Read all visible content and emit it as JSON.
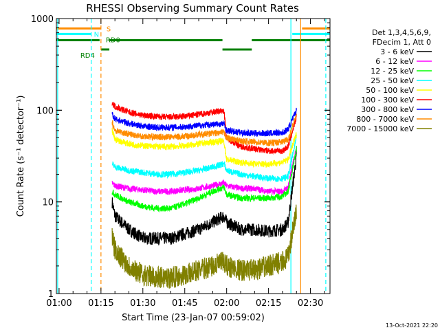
{
  "chart_data": {
    "type": "line",
    "title": "RHESSI Observing Summary Count Rates",
    "xlabel": "Start Time (23-Jan-07 00:59:02)",
    "ylabel": "Count Rate (s⁻¹ detector⁻¹)",
    "yscale": "log",
    "xlim": [
      "00:59:02",
      "02:37:00"
    ],
    "ylim": [
      1,
      1000
    ],
    "x_ticks": [
      "01:00",
      "01:15",
      "01:30",
      "01:45",
      "02:00",
      "02:15",
      "02:30"
    ],
    "y_ticks": [
      "1",
      "10",
      "100",
      "1000"
    ],
    "grid": false,
    "legend_placement": "right",
    "legend_header": [
      "Det 1,3,4,5,6,9,",
      "FDecim 1, Att 0"
    ],
    "series": [
      {
        "name": "3 - 6 keV",
        "color": "#000000",
        "x": [
          "01:19",
          "01:20",
          "01:25",
          "01:30",
          "01:35",
          "01:40",
          "01:45",
          "01:50",
          "01:55",
          "01:59",
          "02:00",
          "02:05",
          "02:10",
          "02:15",
          "02:20",
          "02:22",
          "02:25"
        ],
        "y": [
          10,
          7,
          5,
          4,
          4,
          4,
          4.5,
          5,
          6,
          7,
          6,
          5,
          5,
          4.8,
          5,
          6,
          32
        ]
      },
      {
        "name": "6 - 12 keV",
        "color": "#ff00ff",
        "x": [
          "01:19",
          "01:20",
          "01:25",
          "01:30",
          "01:35",
          "01:40",
          "01:45",
          "01:50",
          "01:55",
          "01:59",
          "02:00",
          "02:05",
          "02:10",
          "02:15",
          "02:20",
          "02:22",
          "02:25"
        ],
        "y": [
          16,
          15,
          14,
          13.5,
          13,
          13,
          13.5,
          14,
          15,
          16,
          15,
          14,
          14,
          13,
          13,
          14.5,
          40
        ]
      },
      {
        "name": "12 - 25 keV",
        "color": "#00ff00",
        "x": [
          "01:19",
          "01:20",
          "01:25",
          "01:30",
          "01:35",
          "01:40",
          "01:45",
          "01:50",
          "01:55",
          "01:59",
          "02:00",
          "02:05",
          "02:10",
          "02:15",
          "02:20",
          "02:22",
          "02:25"
        ],
        "y": [
          13,
          12,
          10,
          9,
          8.5,
          8.5,
          9.5,
          11,
          13,
          14.5,
          12,
          11,
          11,
          11,
          11.5,
          13,
          38
        ]
      },
      {
        "name": "25 - 50 keV",
        "color": "#00ffff",
        "x": [
          "01:19",
          "01:20",
          "01:25",
          "01:30",
          "01:35",
          "01:40",
          "01:45",
          "01:50",
          "01:55",
          "01:59",
          "02:00",
          "02:05",
          "02:10",
          "02:15",
          "02:20",
          "02:22",
          "02:25"
        ],
        "y": [
          26,
          24,
          22,
          21,
          20,
          20,
          21,
          22,
          24,
          26,
          22,
          20,
          19,
          18,
          18,
          19,
          50
        ]
      },
      {
        "name": "50 - 100 keV",
        "color": "#ffff00",
        "x": [
          "01:19",
          "01:20",
          "01:25",
          "01:30",
          "01:35",
          "01:40",
          "01:45",
          "01:50",
          "01:55",
          "01:59",
          "02:00",
          "02:05",
          "02:10",
          "02:15",
          "02:20",
          "02:22",
          "02:25"
        ],
        "y": [
          60,
          48,
          43,
          41,
          40,
          40,
          41,
          43,
          45,
          46,
          29,
          27,
          26,
          26,
          27,
          29,
          55
        ]
      },
      {
        "name": "100 - 300 keV",
        "color": "#ff0000",
        "x": [
          "01:19",
          "01:20",
          "01:25",
          "01:30",
          "01:35",
          "01:40",
          "01:45",
          "01:50",
          "01:55",
          "01:59",
          "02:00",
          "02:05",
          "02:10",
          "02:15",
          "02:20",
          "02:22",
          "02:25"
        ],
        "y": [
          120,
          110,
          95,
          88,
          85,
          84,
          86,
          90,
          95,
          100,
          50,
          40,
          38,
          36,
          36,
          40,
          85
        ]
      },
      {
        "name": "300 - 800 keV",
        "color": "#0000ff",
        "x": [
          "01:19",
          "01:20",
          "01:25",
          "01:30",
          "01:35",
          "01:40",
          "01:45",
          "01:50",
          "01:55",
          "01:59",
          "02:00",
          "02:05",
          "02:10",
          "02:15",
          "02:20",
          "02:22",
          "02:25"
        ],
        "y": [
          90,
          80,
          72,
          67,
          65,
          65,
          66,
          68,
          70,
          71,
          60,
          57,
          56,
          56,
          57,
          62,
          100
        ]
      },
      {
        "name": "800 - 7000 keV",
        "color": "#ff8c00",
        "x": [
          "01:19",
          "01:20",
          "01:25",
          "01:30",
          "01:35",
          "01:40",
          "01:45",
          "01:50",
          "01:55",
          "01:59",
          "02:00",
          "02:05",
          "02:10",
          "02:15",
          "02:20",
          "02:22",
          "02:25"
        ],
        "y": [
          75,
          60,
          55,
          52,
          51,
          51,
          52,
          54,
          56,
          57,
          50,
          46,
          45,
          44,
          45,
          48,
          90
        ]
      },
      {
        "name": "7000 - 15000 keV",
        "color": "#808000",
        "x": [
          "01:19",
          "01:20",
          "01:25",
          "01:30",
          "01:35",
          "01:40",
          "01:45",
          "01:50",
          "01:55",
          "01:59",
          "02:00",
          "02:05",
          "02:10",
          "02:15",
          "02:20",
          "02:22",
          "02:25"
        ],
        "y": [
          4,
          3,
          2,
          1.6,
          1.5,
          1.5,
          1.6,
          1.8,
          2,
          2.2,
          2,
          1.8,
          1.8,
          2,
          2.2,
          2.5,
          8
        ]
      }
    ],
    "vertical_markers": [
      {
        "time": "00:59:30",
        "color": "#00ffff",
        "style": "solid"
      },
      {
        "time": "01:11:30",
        "color": "#00ffff",
        "style": "dashed"
      },
      {
        "time": "01:15:00",
        "color": "#ff8c00",
        "style": "dashed"
      },
      {
        "time": "02:23:00",
        "color": "#00ffff",
        "style": "solid"
      },
      {
        "time": "02:26:30",
        "color": "#ff8c00",
        "style": "solid"
      },
      {
        "time": "02:35:30",
        "color": "#00ffff",
        "style": "dashed"
      }
    ],
    "flag_bars": [
      {
        "label": "S",
        "color": "#ff8c00",
        "y": 780,
        "segments": [
          [
            "00:59:02",
            "01:15:00"
          ],
          [
            "02:27:00",
            "02:37:00"
          ]
        ]
      },
      {
        "label": "N",
        "color": "#00ffff",
        "y": 680,
        "segments": [
          [
            "00:59:02",
            "01:11:30"
          ],
          [
            "02:23:30",
            "02:37:00"
          ]
        ]
      },
      {
        "label": "RD0",
        "color": "#008000",
        "y": 580,
        "segments": [
          [
            "00:59:02",
            "01:14:30"
          ],
          [
            "01:18:00",
            "01:58:30"
          ],
          [
            "02:09:00",
            "02:37:00"
          ]
        ]
      },
      {
        "label": "RD4",
        "color": "#008000",
        "y": 460,
        "segments": [
          [
            "01:15:00",
            "01:18:00"
          ],
          [
            "01:58:30",
            "02:09:00"
          ]
        ]
      }
    ]
  },
  "footer": {
    "timestamp": "13-Oct-2021 22:20"
  }
}
